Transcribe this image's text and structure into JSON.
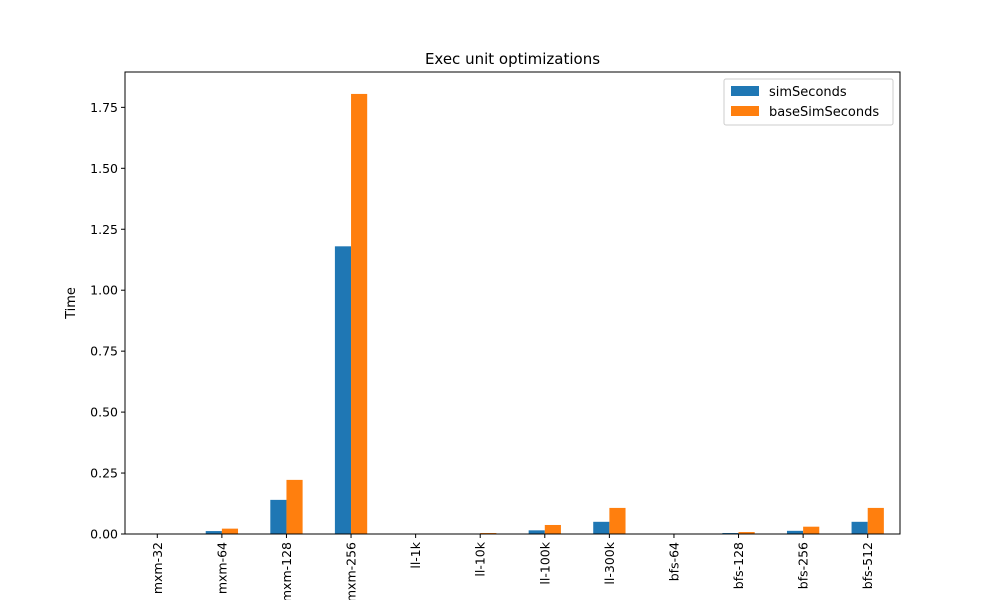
{
  "chart_data": {
    "type": "bar",
    "title": "Exec unit optimizations",
    "xlabel": "",
    "ylabel": "Time",
    "categories": [
      "mxm-32",
      "mxm-64",
      "mxm-128",
      "mxm-256",
      "ll-1k",
      "ll-10k",
      "ll-100k",
      "ll-300k",
      "bfs-64",
      "bfs-128",
      "bfs-256",
      "bfs-512"
    ],
    "series": [
      {
        "name": "simSeconds",
        "color": "#1f77b4",
        "values": [
          0.0003,
          0.012,
          0.14,
          1.18,
          0.0002,
          0.001,
          0.015,
          0.05,
          0.0002,
          0.004,
          0.013,
          0.05
        ]
      },
      {
        "name": "baseSimSeconds",
        "color": "#ff7f0e",
        "values": [
          0.0005,
          0.022,
          0.222,
          1.805,
          0.0004,
          0.004,
          0.037,
          0.107,
          0.0004,
          0.008,
          0.03,
          0.107
        ]
      }
    ],
    "ylim": [
      0,
      1.895
    ],
    "yticks": [
      "0.00",
      "0.25",
      "0.50",
      "0.75",
      "1.00",
      "1.25",
      "1.50",
      "1.75"
    ],
    "legend_position": "top-right",
    "grid": false
  }
}
